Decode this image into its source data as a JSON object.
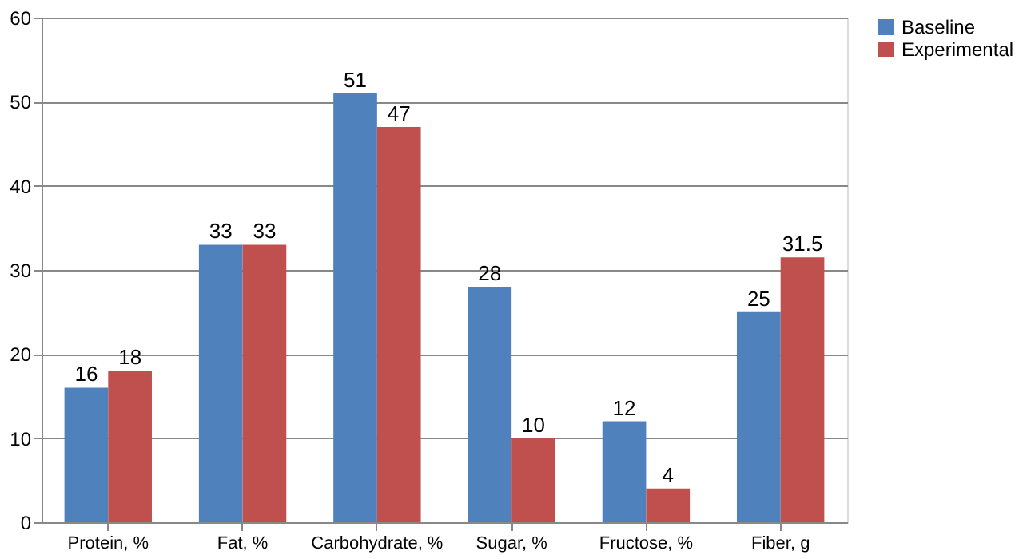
{
  "chart_data": {
    "type": "bar",
    "categories": [
      "Protein, %",
      "Fat, %",
      "Carbohydrate, %",
      "Sugar, %",
      "Fructose, %",
      "Fiber, g"
    ],
    "series": [
      {
        "name": "Baseline",
        "color": "#4f81bd",
        "values": [
          16,
          33,
          51,
          28,
          12,
          25
        ]
      },
      {
        "name": "Experimental",
        "color": "#c0504d",
        "values": [
          18,
          33,
          47,
          10,
          4,
          31.5
        ]
      }
    ],
    "ylim": [
      0,
      60
    ],
    "yticks": [
      0,
      10,
      20,
      30,
      40,
      50,
      60
    ],
    "grid": "y",
    "legend": "right",
    "data_labels": true
  }
}
